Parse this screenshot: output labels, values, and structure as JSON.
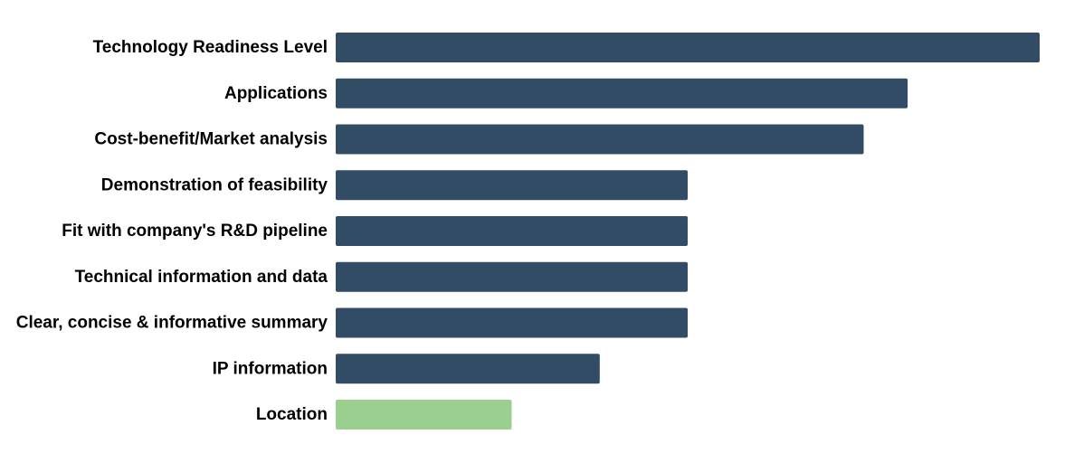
{
  "chart_data": {
    "type": "bar",
    "orientation": "horizontal",
    "title": "",
    "xlabel": "",
    "ylabel": "",
    "categories": [
      "Technology Readiness Level",
      "Applications",
      "Cost-benefit/Market analysis",
      "Demonstration of feasibility",
      "Fit with company's R&D pipeline",
      "Technical information and data",
      "Clear, concise & informative summary",
      "IP information",
      "Location"
    ],
    "values": [
      16,
      13,
      12,
      8,
      8,
      8,
      8,
      6,
      4
    ],
    "bar_colors": [
      "#324c66",
      "#324c66",
      "#324c66",
      "#324c66",
      "#324c66",
      "#324c66",
      "#324c66",
      "#324c66",
      "#9bcf8f"
    ],
    "xlim": [
      0,
      16
    ],
    "grid": false,
    "legend": "none",
    "axes_visible": false
  }
}
